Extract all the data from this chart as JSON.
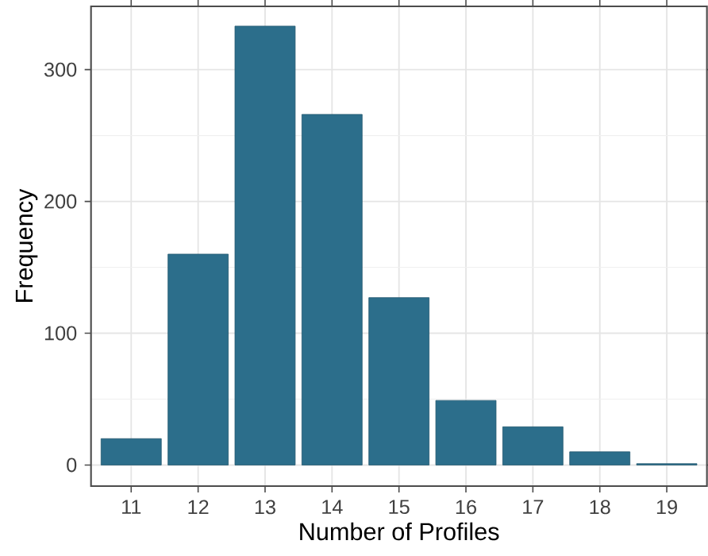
{
  "chart_data": {
    "type": "bar",
    "xlabel": "Number of Profiles",
    "ylabel": "Frequency",
    "categories": [
      "11",
      "12",
      "13",
      "14",
      "15",
      "16",
      "17",
      "18",
      "19"
    ],
    "values": [
      20,
      160,
      333,
      266,
      127,
      49,
      29,
      10,
      1
    ],
    "color": "#2c6e8b",
    "ylim": [
      -16,
      348
    ],
    "yticks": [
      0,
      100,
      200,
      300
    ],
    "grid": true
  }
}
